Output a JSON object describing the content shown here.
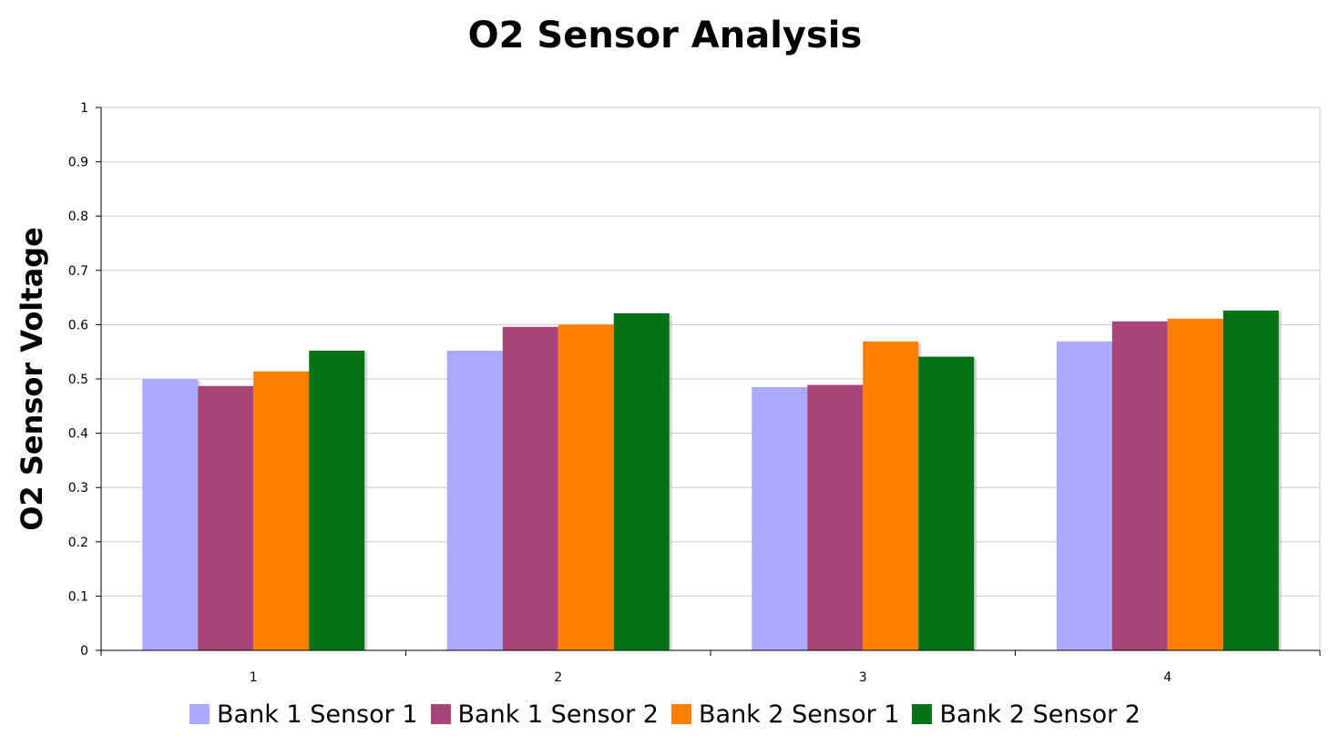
{
  "chart_data": {
    "type": "bar",
    "title": "O2 Sensor Analysis",
    "xlabel": "",
    "ylabel": "O2 Sensor Voltage",
    "categories": [
      "1",
      "2",
      "3",
      "4"
    ],
    "ylim": [
      0,
      1
    ],
    "yticks": [
      "0",
      "0.1",
      "0.2",
      "0.3",
      "0.4",
      "0.5",
      "0.6",
      "0.7",
      "0.8",
      "0.9",
      "1"
    ],
    "grid": true,
    "legend_position": "bottom",
    "series": [
      {
        "name": "Bank 1 Sensor 1",
        "color": "#aaaaff",
        "values": [
          0.5,
          0.552,
          0.485,
          0.569
        ]
      },
      {
        "name": "Bank 1 Sensor 2",
        "color": "#aa4677",
        "values": [
          0.487,
          0.596,
          0.489,
          0.606
        ]
      },
      {
        "name": "Bank 2 Sensor 1",
        "color": "#ff7f00",
        "values": [
          0.514,
          0.6,
          0.569,
          0.611
        ]
      },
      {
        "name": "Bank 2 Sensor 2",
        "color": "#047315",
        "values": [
          0.552,
          0.621,
          0.541,
          0.626
        ]
      }
    ]
  }
}
